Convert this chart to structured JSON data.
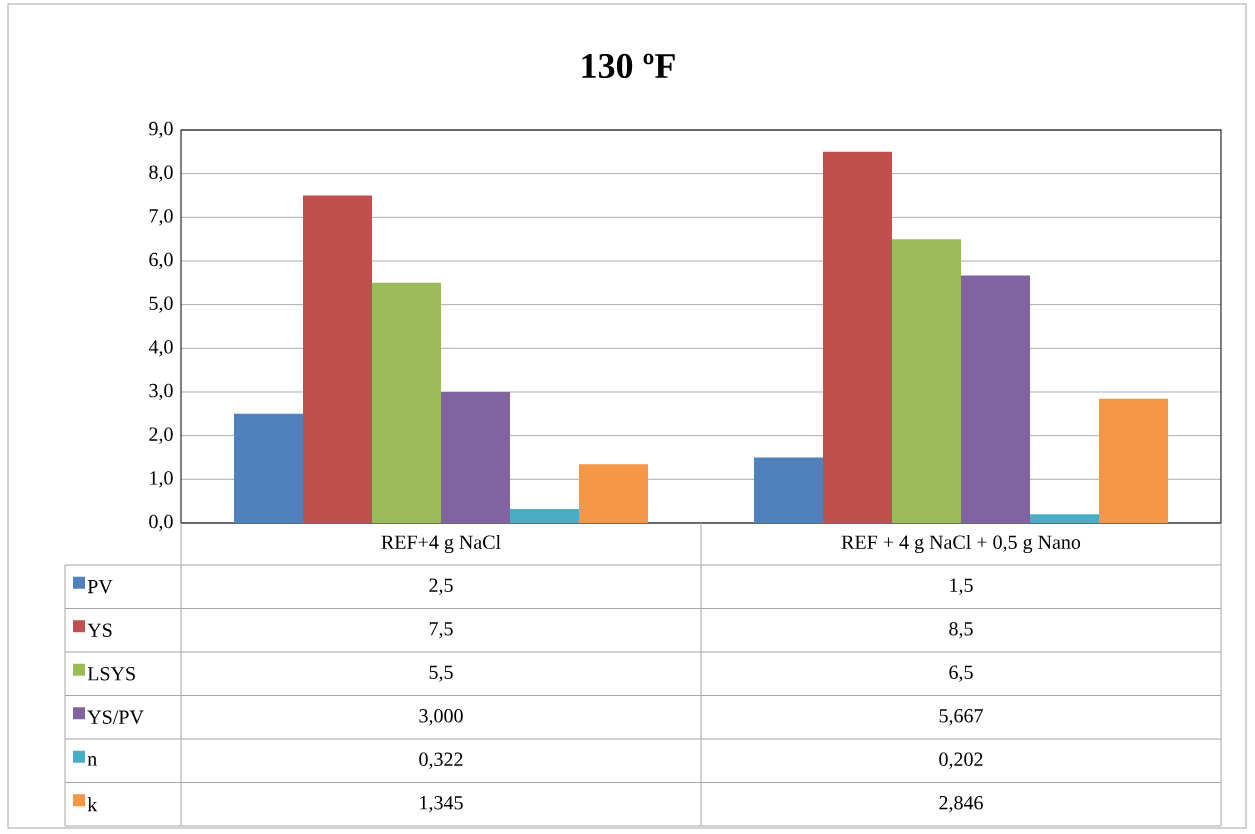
{
  "chart_data": {
    "type": "bar",
    "title": "130 ºF",
    "categories": [
      "REF+4 g NaCl",
      "REF + 4 g NaCl + 0,5 g Nano"
    ],
    "series": [
      {
        "name": "PV",
        "color": "#4f81bd",
        "values": [
          2.5,
          1.5
        ],
        "value_labels": [
          "2,5",
          "1,5"
        ]
      },
      {
        "name": "YS",
        "color": "#c0504d",
        "values": [
          7.5,
          8.5
        ],
        "value_labels": [
          "7,5",
          "8,5"
        ]
      },
      {
        "name": "LSYS",
        "color": "#9bbb59",
        "values": [
          5.5,
          6.5
        ],
        "value_labels": [
          "5,5",
          "6,5"
        ]
      },
      {
        "name": "YS/PV",
        "color": "#8064a2",
        "values": [
          3.0,
          5.667
        ],
        "value_labels": [
          "3,000",
          "5,667"
        ]
      },
      {
        "name": "n",
        "color": "#4bacc6",
        "values": [
          0.322,
          0.202
        ],
        "value_labels": [
          "0,322",
          "0,202"
        ]
      },
      {
        "name": "k",
        "color": "#f79646",
        "values": [
          1.345,
          2.846
        ],
        "value_labels": [
          "1,345",
          "2,846"
        ]
      }
    ],
    "ylim": [
      0,
      9
    ],
    "yticks": [
      {
        "value": 0,
        "label": "0,0"
      },
      {
        "value": 1,
        "label": "1,0"
      },
      {
        "value": 2,
        "label": "2,0"
      },
      {
        "value": 3,
        "label": "3,0"
      },
      {
        "value": 4,
        "label": "4,0"
      },
      {
        "value": 5,
        "label": "5,0"
      },
      {
        "value": 6,
        "label": "6,0"
      },
      {
        "value": 7,
        "label": "7,0"
      },
      {
        "value": 8,
        "label": "8,0"
      },
      {
        "value": 9,
        "label": "9,0"
      }
    ],
    "grid": "y",
    "legend": "bottom"
  }
}
